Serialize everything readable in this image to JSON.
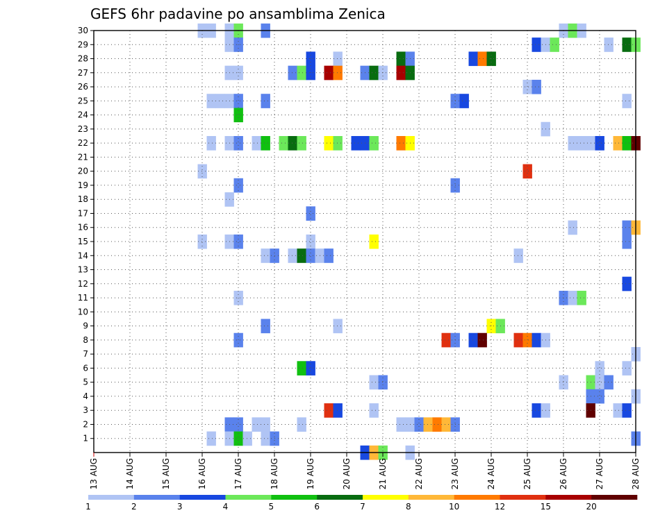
{
  "chart_data": {
    "type": "heatmap",
    "title": "GEFS 6hr padavine po ansamblima Zenica",
    "xlabel": "",
    "ylabel": "",
    "x_labels": [
      "13 AUG",
      "14 AUG",
      "15 AUG",
      "16 AUG",
      "17 AUG",
      "18 AUG",
      "19 AUG",
      "20 AUG",
      "21 AUG",
      "22 AUG",
      "23 AUG",
      "24 AUG",
      "25 AUG",
      "26 AUG",
      "27 AUG",
      "28 AUG"
    ],
    "y_labels": [
      "1",
      "2",
      "3",
      "4",
      "5",
      "6",
      "7",
      "8",
      "9",
      "10",
      "11",
      "12",
      "13",
      "14",
      "15",
      "16",
      "17",
      "18",
      "19",
      "20",
      "21",
      "22",
      "23",
      "24",
      "25",
      "26",
      "27",
      "28",
      "29",
      "30"
    ],
    "time_steps_per_day": 4,
    "grid": "dotted",
    "legend": {
      "placement": "bottom",
      "thresholds": [
        "1",
        "2",
        "3",
        "4",
        "5",
        "6",
        "7",
        "8",
        "10",
        "12",
        "15",
        "20"
      ],
      "colors": [
        "#b0c4f4",
        "#5a82ec",
        "#1848e0",
        "#6ce85a",
        "#10c010",
        "#086c10",
        "#ffff00",
        "#ffb838",
        "#ff7a00",
        "#e03010",
        "#a80000",
        "#600000"
      ]
    },
    "cells": [
      [
        3.0,
        30,
        0
      ],
      [
        3.25,
        30,
        0
      ],
      [
        3.75,
        30,
        0
      ],
      [
        4.0,
        30,
        3
      ],
      [
        4.75,
        30,
        1
      ],
      [
        13.0,
        30,
        0
      ],
      [
        13.25,
        30,
        3
      ],
      [
        13.5,
        30,
        0
      ],
      [
        3.75,
        29,
        0
      ],
      [
        4.0,
        29,
        1
      ],
      [
        12.25,
        29,
        2
      ],
      [
        12.5,
        29,
        0
      ],
      [
        12.75,
        29,
        3
      ],
      [
        14.25,
        29,
        0
      ],
      [
        14.75,
        29,
        5
      ],
      [
        15.0,
        29,
        3
      ],
      [
        6.0,
        28,
        2
      ],
      [
        6.75,
        28,
        0
      ],
      [
        8.5,
        28,
        5
      ],
      [
        8.75,
        28,
        1
      ],
      [
        10.5,
        28,
        2
      ],
      [
        10.75,
        28,
        8
      ],
      [
        11.0,
        28,
        5
      ],
      [
        3.75,
        27,
        0
      ],
      [
        4.0,
        27,
        0
      ],
      [
        5.5,
        27,
        1
      ],
      [
        5.75,
        27,
        3
      ],
      [
        6.0,
        27,
        2
      ],
      [
        6.5,
        27,
        10
      ],
      [
        6.75,
        27,
        8
      ],
      [
        7.5,
        27,
        1
      ],
      [
        7.75,
        27,
        5
      ],
      [
        8.0,
        27,
        0
      ],
      [
        8.5,
        27,
        10
      ],
      [
        8.75,
        27,
        5
      ],
      [
        12.0,
        26,
        0
      ],
      [
        12.25,
        26,
        1
      ],
      [
        3.25,
        25,
        0
      ],
      [
        3.5,
        25,
        0
      ],
      [
        3.75,
        25,
        0
      ],
      [
        4.0,
        25,
        1
      ],
      [
        4.75,
        25,
        1
      ],
      [
        10.0,
        25,
        1
      ],
      [
        10.25,
        25,
        2
      ],
      [
        14.75,
        25,
        0
      ],
      [
        4.0,
        24,
        4
      ],
      [
        12.5,
        23,
        0
      ],
      [
        3.25,
        22,
        0
      ],
      [
        3.75,
        22,
        0
      ],
      [
        4.0,
        22,
        1
      ],
      [
        4.5,
        22,
        0
      ],
      [
        4.75,
        22,
        4
      ],
      [
        5.25,
        22,
        3
      ],
      [
        5.5,
        22,
        5
      ],
      [
        5.75,
        22,
        3
      ],
      [
        6.5,
        22,
        6
      ],
      [
        6.75,
        22,
        3
      ],
      [
        7.25,
        22,
        2
      ],
      [
        7.5,
        22,
        2
      ],
      [
        7.75,
        22,
        3
      ],
      [
        8.5,
        22,
        8
      ],
      [
        8.75,
        22,
        6
      ],
      [
        13.25,
        22,
        0
      ],
      [
        13.5,
        22,
        0
      ],
      [
        13.75,
        22,
        0
      ],
      [
        14.0,
        22,
        2
      ],
      [
        14.5,
        22,
        7
      ],
      [
        14.75,
        22,
        4
      ],
      [
        15.0,
        22,
        11
      ],
      [
        3.0,
        20,
        0
      ],
      [
        12.0,
        20,
        9
      ],
      [
        4.0,
        19,
        1
      ],
      [
        10.0,
        19,
        1
      ],
      [
        3.75,
        18,
        0
      ],
      [
        6.0,
        17,
        1
      ],
      [
        13.25,
        16,
        0
      ],
      [
        14.75,
        16,
        1
      ],
      [
        15.0,
        16,
        7
      ],
      [
        3.0,
        15,
        0
      ],
      [
        3.75,
        15,
        0
      ],
      [
        4.0,
        15,
        1
      ],
      [
        6.0,
        15,
        0
      ],
      [
        7.75,
        15,
        6
      ],
      [
        14.75,
        15,
        1
      ],
      [
        4.75,
        14,
        0
      ],
      [
        5.0,
        14,
        1
      ],
      [
        5.5,
        14,
        0
      ],
      [
        5.75,
        14,
        5
      ],
      [
        6.0,
        14,
        1
      ],
      [
        6.25,
        14,
        0
      ],
      [
        6.5,
        14,
        1
      ],
      [
        11.75,
        14,
        0
      ],
      [
        14.75,
        12,
        2
      ],
      [
        4.0,
        11,
        0
      ],
      [
        13.0,
        11,
        1
      ],
      [
        13.25,
        11,
        0
      ],
      [
        13.5,
        11,
        3
      ],
      [
        4.75,
        9,
        1
      ],
      [
        6.75,
        9,
        0
      ],
      [
        11.0,
        9,
        6
      ],
      [
        11.25,
        9,
        3
      ],
      [
        4.0,
        8,
        1
      ],
      [
        9.75,
        8,
        9
      ],
      [
        10.0,
        8,
        1
      ],
      [
        10.5,
        8,
        2
      ],
      [
        10.75,
        8,
        11
      ],
      [
        11.75,
        8,
        9
      ],
      [
        12.0,
        8,
        8
      ],
      [
        12.25,
        8,
        2
      ],
      [
        12.5,
        8,
        0
      ],
      [
        15.0,
        7,
        0
      ],
      [
        5.75,
        6,
        4
      ],
      [
        6.0,
        6,
        2
      ],
      [
        14.0,
        6,
        0
      ],
      [
        14.75,
        6,
        0
      ],
      [
        7.75,
        5,
        0
      ],
      [
        8.0,
        5,
        1
      ],
      [
        13.0,
        5,
        0
      ],
      [
        13.75,
        5,
        3
      ],
      [
        14.0,
        5,
        0
      ],
      [
        14.25,
        5,
        1
      ],
      [
        13.75,
        4,
        1
      ],
      [
        14.0,
        4,
        1
      ],
      [
        15.0,
        4,
        0
      ],
      [
        6.5,
        3,
        9
      ],
      [
        6.75,
        3,
        2
      ],
      [
        7.75,
        3,
        0
      ],
      [
        12.25,
        3,
        2
      ],
      [
        12.5,
        3,
        0
      ],
      [
        13.75,
        3,
        11
      ],
      [
        14.5,
        3,
        0
      ],
      [
        14.75,
        3,
        2
      ],
      [
        3.75,
        2,
        1
      ],
      [
        4.0,
        2,
        1
      ],
      [
        4.5,
        2,
        0
      ],
      [
        4.75,
        2,
        0
      ],
      [
        5.75,
        2,
        0
      ],
      [
        8.5,
        2,
        0
      ],
      [
        8.75,
        2,
        0
      ],
      [
        9.0,
        2,
        1
      ],
      [
        9.25,
        2,
        7
      ],
      [
        9.5,
        2,
        8
      ],
      [
        9.75,
        2,
        7
      ],
      [
        10.0,
        2,
        1
      ],
      [
        3.25,
        1,
        0
      ],
      [
        3.75,
        1,
        0
      ],
      [
        4.0,
        1,
        4
      ],
      [
        4.25,
        1,
        0
      ],
      [
        4.75,
        1,
        0
      ],
      [
        5.0,
        1,
        1
      ],
      [
        15.0,
        1,
        1
      ],
      [
        7.5,
        0,
        2
      ],
      [
        7.75,
        0,
        7
      ],
      [
        8.0,
        0,
        3
      ],
      [
        8.75,
        0,
        0
      ]
    ]
  }
}
